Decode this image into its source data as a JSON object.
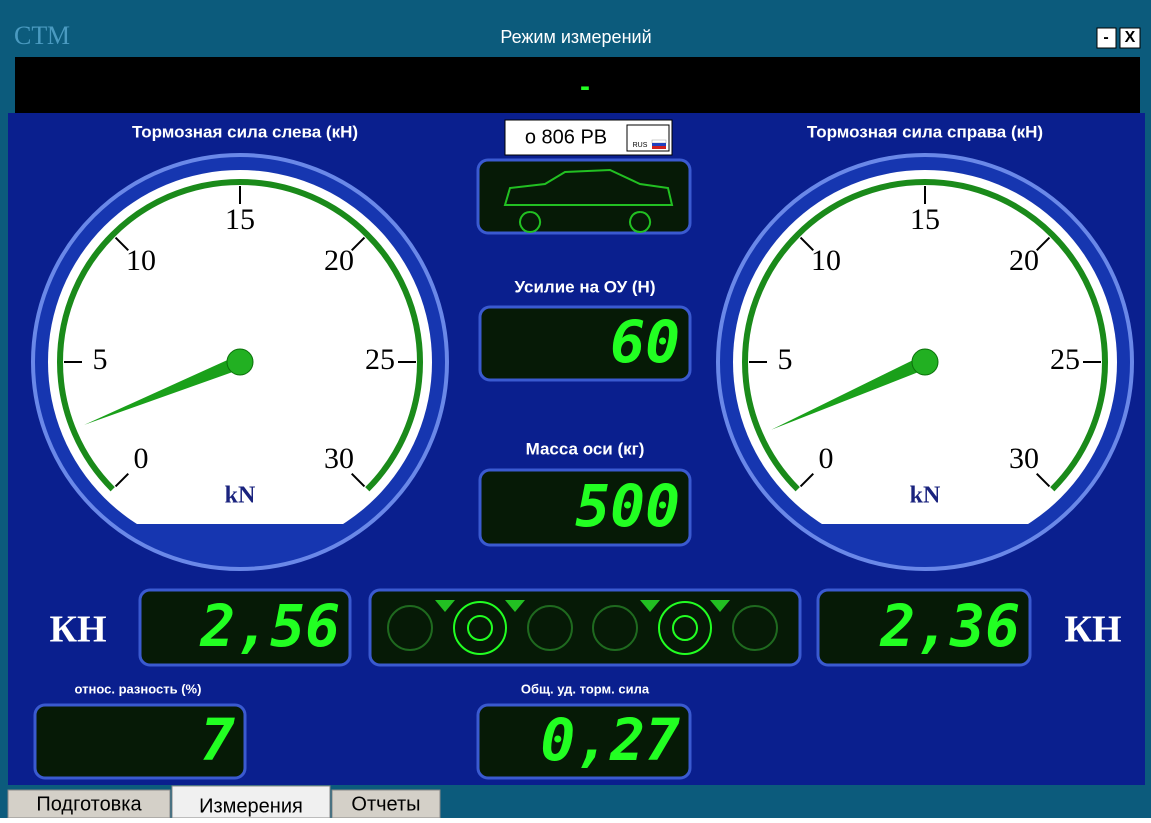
{
  "window": {
    "logo": "СТМ",
    "title": "Режим измерений",
    "buttons": [
      "-",
      "X"
    ]
  },
  "status": "-",
  "plate": {
    "number": "о 806 РВ",
    "region": "RUS"
  },
  "left_gauge": {
    "title": "Тормозная сила слева (кН)",
    "ticks": [
      0,
      5,
      10,
      15,
      20,
      25,
      30
    ],
    "unit": "kN",
    "value": 2.56
  },
  "right_gauge": {
    "title": "Тормозная сила справа (кН)",
    "ticks": [
      0,
      5,
      10,
      15,
      20,
      25,
      30
    ],
    "unit": "kN",
    "value": 2.36
  },
  "readouts": {
    "axle_force": {
      "label": "Усилие на ОУ (Н)",
      "value": "60"
    },
    "axle_mass": {
      "label": "Масса оси (кг)",
      "value": "500"
    },
    "left_force": {
      "unit": "КН",
      "value": "2,56"
    },
    "right_force": {
      "unit": "КН",
      "value": "2,36"
    },
    "relative_diff": {
      "label": "относ. разность (%)",
      "value": "7"
    },
    "total_specific": {
      "label": "Общ. уд. торм. сила",
      "value": "0,27"
    }
  },
  "tabs": [
    "Подготовка",
    "Измерения",
    "Отчеты"
  ]
}
